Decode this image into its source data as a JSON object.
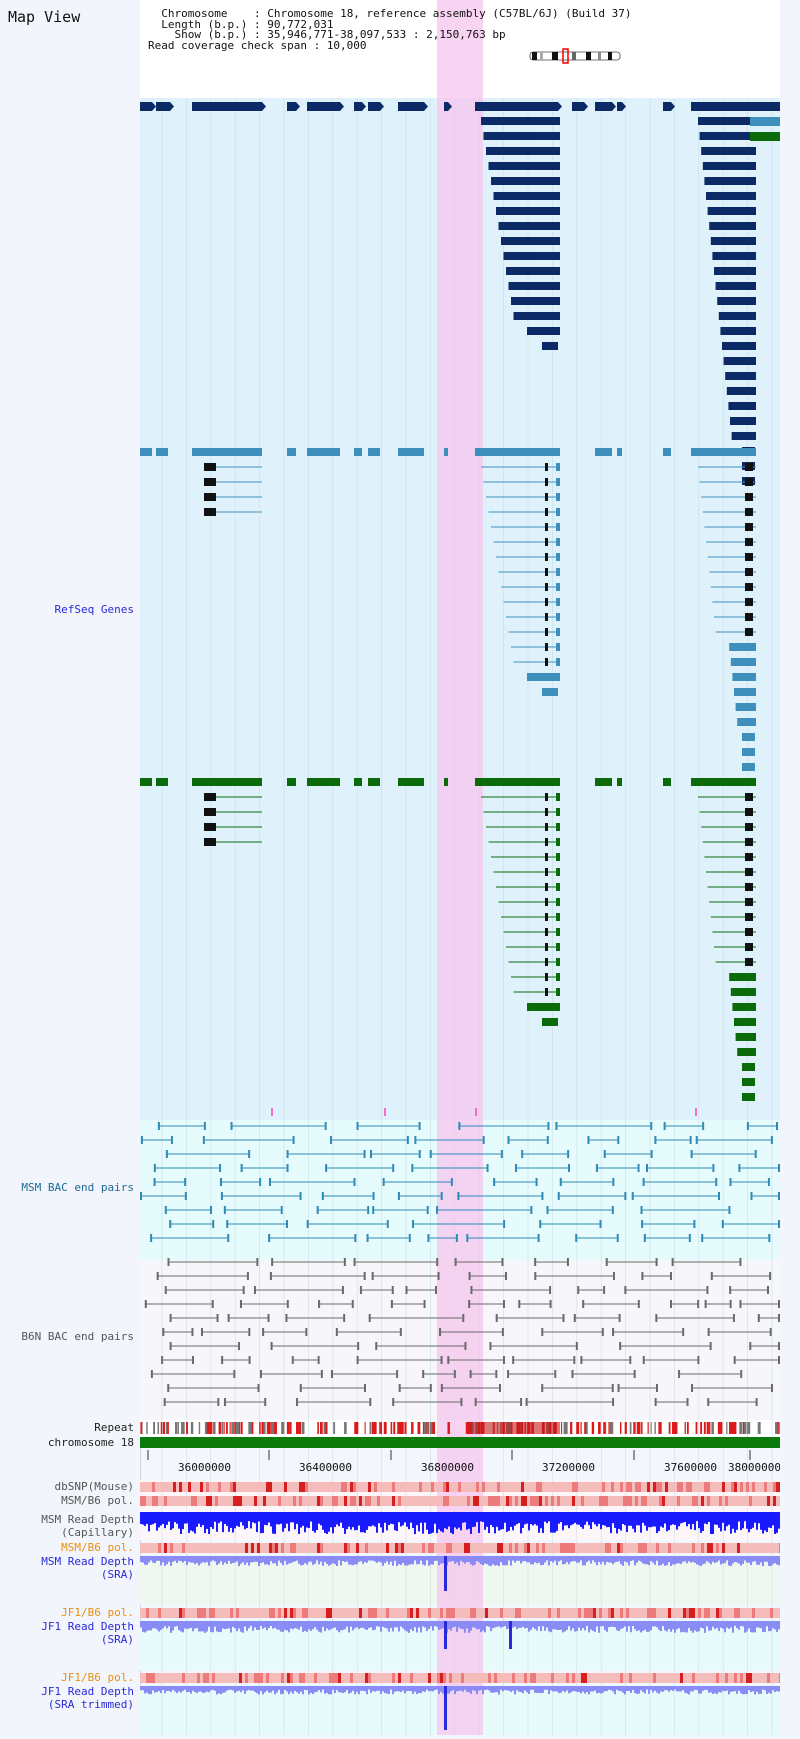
{
  "app": {
    "title": "Map View"
  },
  "info": {
    "chromosome_key": "Chromosome    :",
    "chromosome_val": "Chromosome 18, reference assembly (C57BL/6J) (Build 37)",
    "length_key": "Length (b.p.) :",
    "length_val": "90,772,031",
    "show_key": "Show (b.p.) :",
    "show_val": "35,946,771-38,097,533 : 2,150,763 bp",
    "span_key": "Read coverage check span :",
    "span_val": "10,000"
  },
  "tracks": {
    "refseq": "RefSeq Genes",
    "msm_bac": "MSM BAC end pairs",
    "b6n_bac": "B6N BAC end pairs",
    "repeat": "Repeat",
    "chromosome": "chromosome 18",
    "dbsnp": "dbSNP(Mouse)",
    "msm_b6_pol": "MSM/B6 pol.",
    "msm_depth_cap": "MSM Read Depth\n(Capillary)",
    "msm_b6_pol2": "MSM/B6 pol.",
    "msm_depth_sra": "MSM Read Depth\n(SRA)",
    "jf1_b6_pol": "JF1/B6 pol.",
    "jf1_depth_sra": "JF1 Read Depth\n(SRA)",
    "jf1_b6_pol2": "JF1/B6 pol.",
    "jf1_depth_trim": "JF1 Read Depth\n(SRA trimmed)"
  },
  "axis": {
    "ticks": [
      "36000000",
      "36400000",
      "36800000",
      "37200000",
      "37600000",
      "38000000"
    ]
  },
  "colors": {
    "refseq_dark": "#0b2a66",
    "refseq_mid": "#3f8fbd",
    "refseq_green": "#0b6b0b",
    "highlight": "#f5c6ee",
    "depth_blue": "#1a1aff",
    "depth_light": "#8b8bf5",
    "pol_red": "#e33333"
  }
}
